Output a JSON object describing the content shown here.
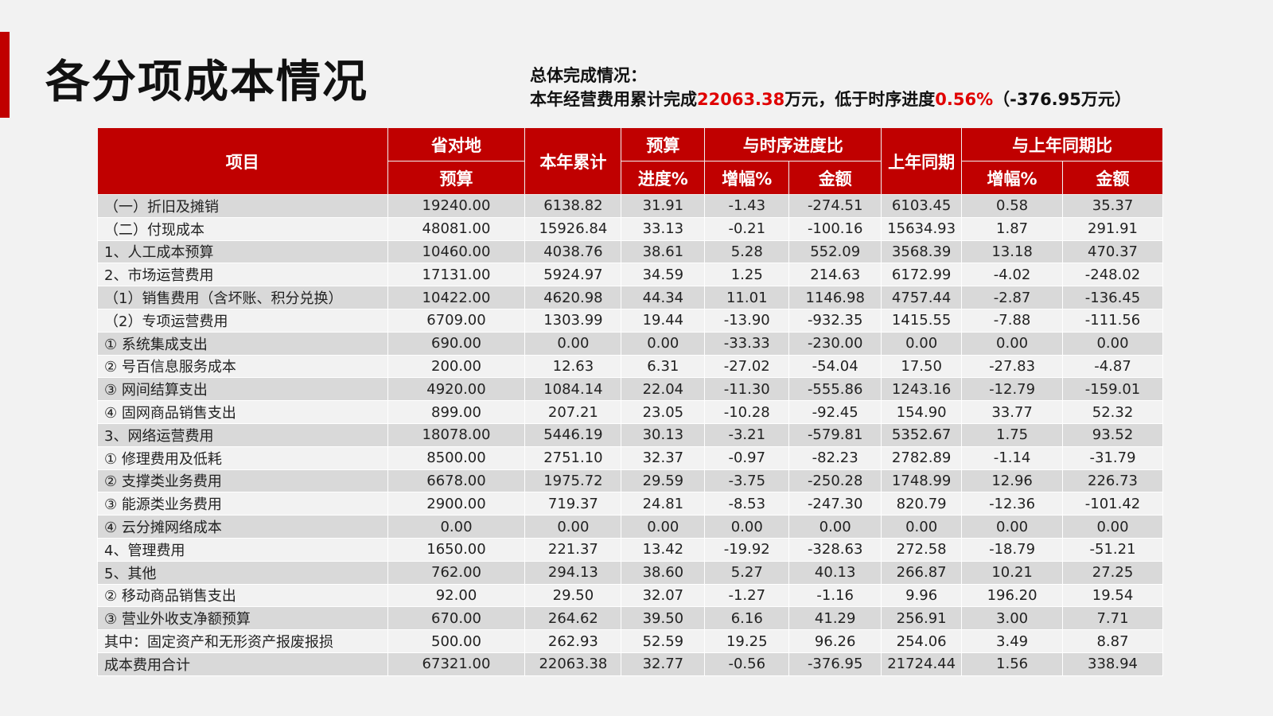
{
  "header": {
    "title": "各分项成本情况",
    "summary_title": "总体完成情况：",
    "summary": [
      "本年经营费用累计完成",
      "22063.38",
      "万元，低于时序进度",
      "0.56%",
      "（-376.95万元）"
    ]
  },
  "table": {
    "head_top": [
      "项目",
      "省对地",
      "本年累计",
      "预算",
      "与时序进度比",
      "上年同期",
      "与上年同期比"
    ],
    "head_bottom": [
      "预算",
      "进度%",
      "增幅%",
      "金额",
      "增幅%",
      "金额"
    ],
    "rows": [
      [
        "（一）折旧及摊销",
        "19240.00",
        "6138.82",
        "31.91",
        "-1.43",
        "-274.51",
        "6103.45",
        "0.58",
        "35.37"
      ],
      [
        "（二）付现成本",
        "48081.00",
        "15926.84",
        "33.13",
        "-0.21",
        "-100.16",
        "15634.93",
        "1.87",
        "291.91"
      ],
      [
        "1、人工成本预算",
        "10460.00",
        "4038.76",
        "38.61",
        "5.28",
        "552.09",
        "3568.39",
        "13.18",
        "470.37"
      ],
      [
        "2、市场运营费用",
        "17131.00",
        "5924.97",
        "34.59",
        "1.25",
        "214.63",
        "6172.99",
        "-4.02",
        "-248.02"
      ],
      [
        "（1）销售费用（含坏账、积分兑换）",
        "10422.00",
        "4620.98",
        "44.34",
        "11.01",
        "1146.98",
        "4757.44",
        "-2.87",
        "-136.45"
      ],
      [
        "（2）专项运营费用",
        "6709.00",
        "1303.99",
        "19.44",
        "-13.90",
        "-932.35",
        "1415.55",
        "-7.88",
        "-111.56"
      ],
      [
        "① 系统集成支出",
        "690.00",
        "0.00",
        "0.00",
        "-33.33",
        "-230.00",
        "0.00",
        "0.00",
        "0.00"
      ],
      [
        "② 号百信息服务成本",
        "200.00",
        "12.63",
        "6.31",
        "-27.02",
        "-54.04",
        "17.50",
        "-27.83",
        "-4.87"
      ],
      [
        "③ 网间结算支出",
        "4920.00",
        "1084.14",
        "22.04",
        "-11.30",
        "-555.86",
        "1243.16",
        "-12.79",
        "-159.01"
      ],
      [
        "④ 固网商品销售支出",
        "899.00",
        "207.21",
        "23.05",
        "-10.28",
        "-92.45",
        "154.90",
        "33.77",
        "52.32"
      ],
      [
        "3、网络运营费用",
        "18078.00",
        "5446.19",
        "30.13",
        "-3.21",
        "-579.81",
        "5352.67",
        "1.75",
        "93.52"
      ],
      [
        "① 修理费用及低耗",
        "8500.00",
        "2751.10",
        "32.37",
        "-0.97",
        "-82.23",
        "2782.89",
        "-1.14",
        "-31.79"
      ],
      [
        "② 支撑类业务费用",
        "6678.00",
        "1975.72",
        "29.59",
        "-3.75",
        "-250.28",
        "1748.99",
        "12.96",
        "226.73"
      ],
      [
        "③ 能源类业务费用",
        "2900.00",
        "719.37",
        "24.81",
        "-8.53",
        "-247.30",
        "820.79",
        "-12.36",
        "-101.42"
      ],
      [
        "④ 云分摊网络成本",
        "0.00",
        "0.00",
        "0.00",
        "0.00",
        "0.00",
        "0.00",
        "0.00",
        "0.00"
      ],
      [
        "4、管理费用",
        "1650.00",
        "221.37",
        "13.42",
        "-19.92",
        "-328.63",
        "272.58",
        "-18.79",
        "-51.21"
      ],
      [
        "5、其他",
        "762.00",
        "294.13",
        "38.60",
        "5.27",
        "40.13",
        "266.87",
        "10.21",
        "27.25"
      ],
      [
        "② 移动商品销售支出",
        "92.00",
        "29.50",
        "32.07",
        "-1.27",
        "-1.16",
        "9.96",
        "196.20",
        "19.54"
      ],
      [
        "③ 营业外收支净额预算",
        "670.00",
        "264.62",
        "39.50",
        "6.16",
        "41.29",
        "256.91",
        "3.00",
        "7.71"
      ],
      [
        "其中：固定资产和无形资产报废报损",
        "500.00",
        "262.93",
        "52.59",
        "19.25",
        "96.26",
        "254.06",
        "3.49",
        "8.87"
      ],
      [
        "成本费用合计",
        "67321.00",
        "22063.38",
        "32.77",
        "-0.56",
        "-376.95",
        "21724.44",
        "1.56",
        "338.94"
      ]
    ]
  }
}
